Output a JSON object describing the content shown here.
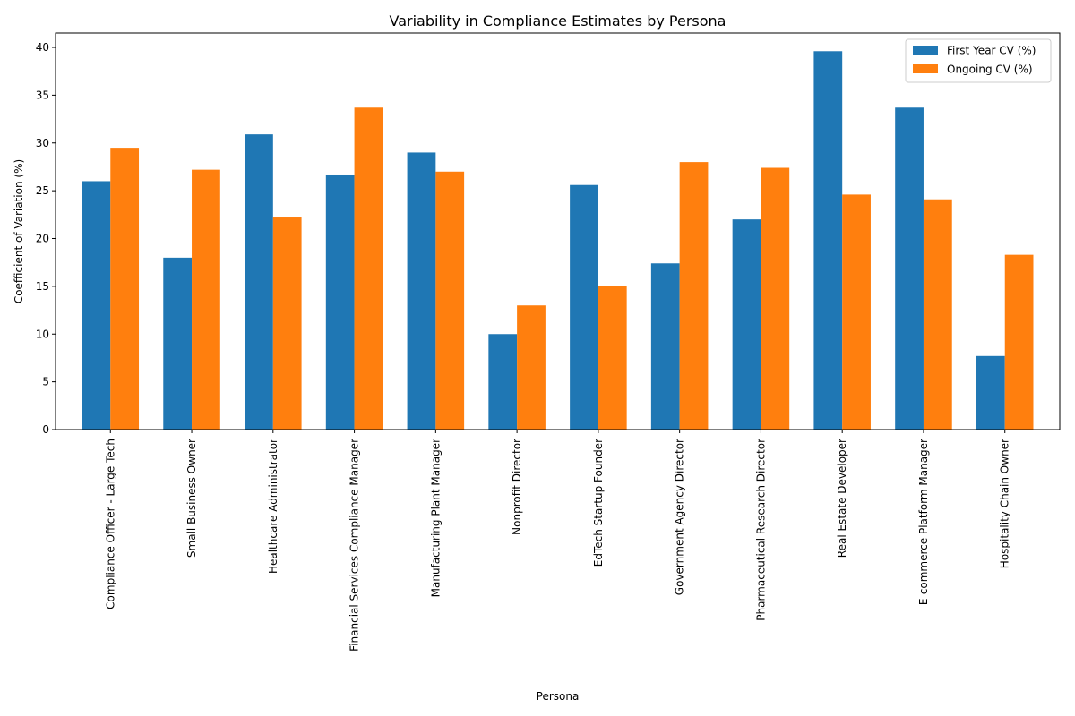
{
  "chart_data": {
    "type": "bar",
    "title": "Variability in Compliance Estimates by Persona",
    "xlabel": "Persona",
    "ylabel": "Coefficient of Variation (%)",
    "ylim": [
      0,
      41.5
    ],
    "yticks": [
      0,
      5,
      10,
      15,
      20,
      25,
      30,
      35,
      40
    ],
    "grid": false,
    "legend_position": "top-right",
    "categories": [
      "Compliance Officer - Large Tech",
      "Small Business Owner",
      "Healthcare Administrator",
      "Financial Services Compliance Manager",
      "Manufacturing Plant Manager",
      "Nonprofit Director",
      "EdTech Startup Founder",
      "Government Agency Director",
      "Pharmaceutical Research Director",
      "Real Estate Developer",
      "E-commerce Platform Manager",
      "Hospitality Chain Owner"
    ],
    "series": [
      {
        "name": "First Year CV (%)",
        "color": "#1f77b4",
        "values": [
          26.0,
          18.0,
          30.9,
          26.7,
          29.0,
          10.0,
          25.6,
          17.4,
          22.0,
          39.6,
          33.7,
          7.7
        ]
      },
      {
        "name": "Ongoing CV (%)",
        "color": "#ff7f0e",
        "values": [
          29.5,
          27.2,
          22.2,
          33.7,
          27.0,
          13.0,
          15.0,
          28.0,
          27.4,
          24.6,
          24.1,
          18.3
        ]
      }
    ]
  }
}
